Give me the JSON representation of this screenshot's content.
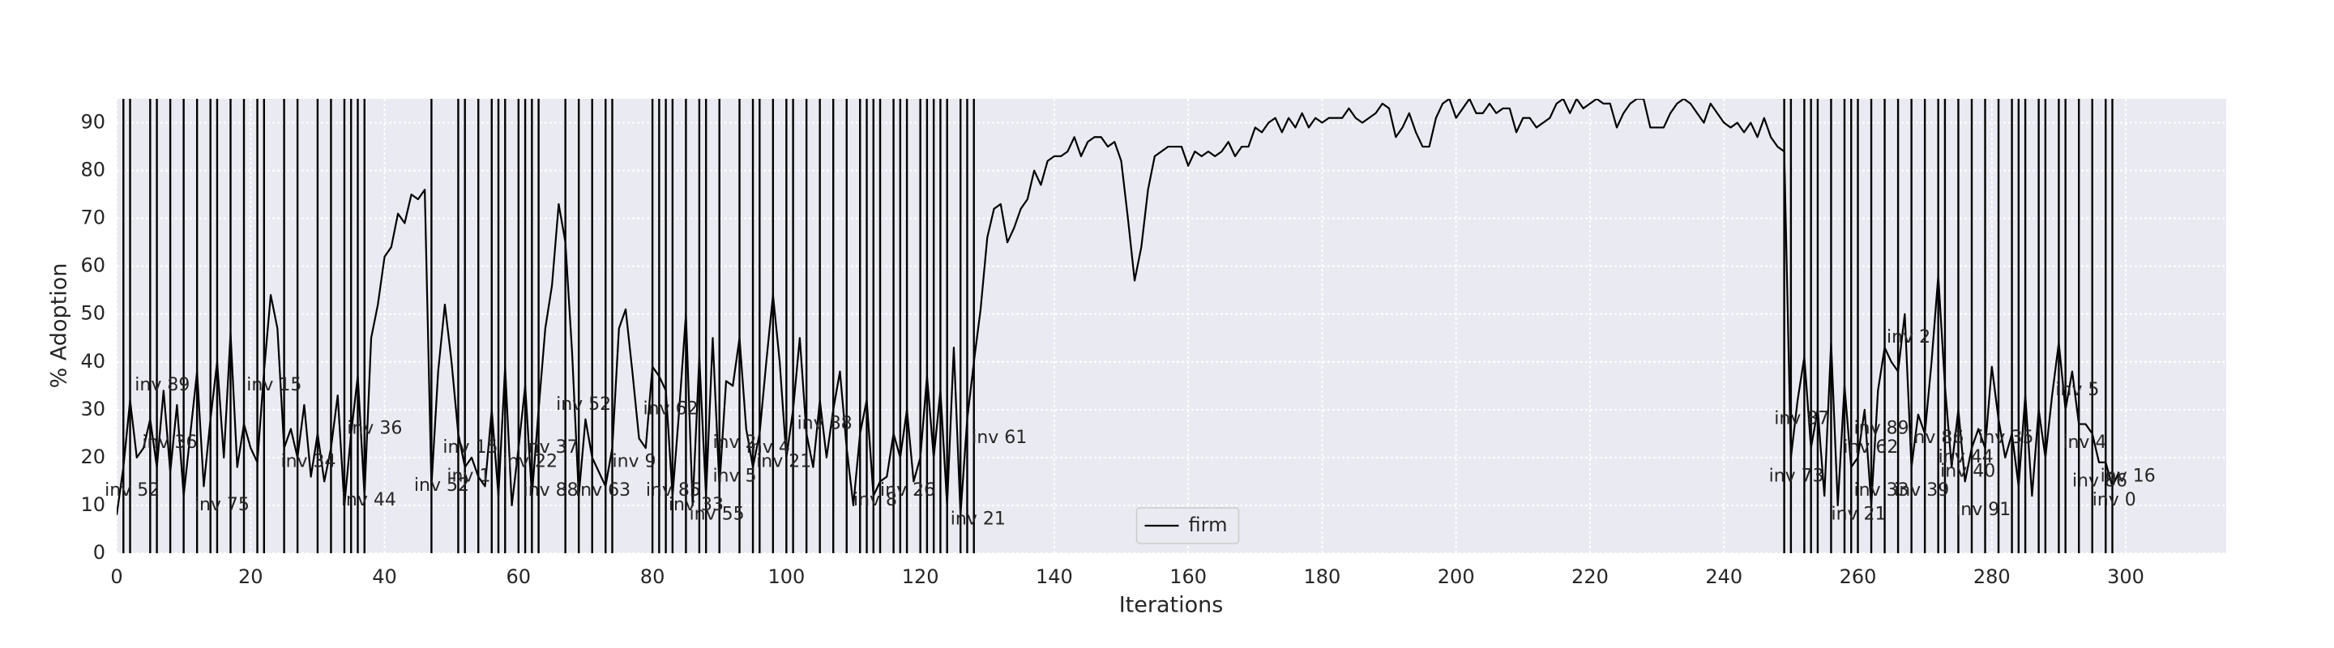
{
  "chart_data": {
    "type": "line",
    "xlabel": "Iterations",
    "ylabel": "% Adoption",
    "x": [
      0,
      1,
      2,
      3,
      4,
      5,
      6,
      7,
      8,
      9,
      10,
      11,
      12,
      13,
      14,
      15,
      16,
      17,
      18,
      19,
      20,
      21,
      22,
      23,
      24,
      25,
      26,
      27,
      28,
      29,
      30,
      31,
      32,
      33,
      34,
      35,
      36,
      37,
      38,
      39,
      40,
      41,
      42,
      43,
      44,
      45,
      46,
      47,
      48,
      49,
      50,
      51,
      52,
      53,
      54,
      55,
      56,
      57,
      58,
      59,
      60,
      61,
      62,
      63,
      64,
      65,
      66,
      67,
      68,
      69,
      70,
      71,
      72,
      73,
      74,
      75,
      76,
      77,
      78,
      79,
      80,
      81,
      82,
      83,
      84,
      85,
      86,
      87,
      88,
      89,
      90,
      91,
      92,
      93,
      94,
      95,
      96,
      97,
      98,
      99,
      100,
      101,
      102,
      103,
      104,
      105,
      106,
      107,
      108,
      109,
      110,
      111,
      112,
      113,
      114,
      115,
      116,
      117,
      118,
      119,
      120,
      121,
      122,
      123,
      124,
      125,
      126,
      127,
      128,
      129,
      130,
      131,
      132,
      133,
      134,
      135,
      136,
      137,
      138,
      139,
      140,
      141,
      142,
      143,
      144,
      145,
      146,
      147,
      148,
      149,
      150,
      151,
      152,
      153,
      154,
      155,
      156,
      157,
      158,
      159,
      160,
      161,
      162,
      163,
      164,
      165,
      166,
      167,
      168,
      169,
      170,
      171,
      172,
      173,
      174,
      175,
      176,
      177,
      178,
      179,
      180,
      181,
      182,
      183,
      184,
      185,
      186,
      187,
      188,
      189,
      190,
      191,
      192,
      193,
      194,
      195,
      196,
      197,
      198,
      199,
      200,
      201,
      202,
      203,
      204,
      205,
      206,
      207,
      208,
      209,
      210,
      211,
      212,
      213,
      214,
      215,
      216,
      217,
      218,
      219,
      220,
      221,
      222,
      223,
      224,
      225,
      226,
      227,
      228,
      229,
      230,
      231,
      232,
      233,
      234,
      235,
      236,
      237,
      238,
      239,
      240,
      241,
      242,
      243,
      244,
      245,
      246,
      247,
      248,
      249,
      250,
      251,
      252,
      253,
      254,
      255,
      256,
      257,
      258,
      259,
      260,
      261,
      262,
      263,
      264,
      265,
      266,
      267,
      268,
      269,
      270,
      271,
      272,
      273,
      274,
      275,
      276,
      277,
      278,
      279,
      280,
      281,
      282,
      283,
      284,
      285,
      286,
      287,
      288,
      289,
      290,
      291,
      292,
      293,
      294,
      295,
      296,
      297,
      298,
      299
    ],
    "series": [
      {
        "name": "firm",
        "color": "#000000",
        "values": [
          8,
          18,
          32,
          20,
          22,
          28,
          18,
          34,
          17,
          31,
          12,
          25,
          38,
          14,
          28,
          40,
          20,
          46,
          18,
          27,
          22,
          19,
          38,
          54,
          47,
          22,
          26,
          20,
          31,
          16,
          25,
          15,
          22,
          33,
          10,
          25,
          37,
          12,
          45,
          52,
          62,
          64,
          71,
          69,
          75,
          74,
          76,
          14,
          38,
          52,
          40,
          25,
          18,
          20,
          16,
          14,
          30,
          12,
          39,
          10,
          22,
          35,
          12,
          30,
          47,
          56,
          73,
          65,
          42,
          12,
          28,
          20,
          17,
          14,
          22,
          47,
          51,
          38,
          24,
          22,
          39,
          37,
          34,
          12,
          30,
          50,
          10,
          41,
          12,
          45,
          14,
          36,
          35,
          45,
          26,
          18,
          25,
          40,
          54,
          40,
          20,
          30,
          45,
          25,
          18,
          32,
          20,
          30,
          38,
          22,
          10,
          25,
          32,
          12,
          15,
          16,
          25,
          20,
          30,
          15,
          20,
          37,
          20,
          34,
          10,
          43,
          8,
          28,
          40,
          51,
          66,
          72,
          73,
          65,
          68,
          72,
          74,
          80,
          77,
          82,
          83,
          83,
          84,
          87,
          83,
          86,
          87,
          87,
          85,
          86,
          82,
          70,
          57,
          64,
          76,
          83,
          84,
          85,
          85,
          85,
          81,
          84,
          83,
          84,
          83,
          84,
          86,
          83,
          85,
          85,
          89,
          88,
          90,
          91,
          88,
          91,
          89,
          92,
          89,
          91,
          90,
          91,
          91,
          91,
          93,
          91,
          90,
          91,
          92,
          94,
          93,
          87,
          89,
          92,
          88,
          85,
          85,
          91,
          94,
          95,
          91,
          93,
          95,
          92,
          92,
          94,
          92,
          93,
          93,
          88,
          91,
          91,
          89,
          90,
          91,
          94,
          95,
          92,
          95,
          93,
          94,
          95,
          94,
          94,
          89,
          92,
          94,
          95,
          95,
          89,
          89,
          89,
          92,
          94,
          95,
          94,
          92,
          90,
          94,
          92,
          90,
          89,
          90,
          88,
          90,
          87,
          91,
          87,
          85,
          84,
          20,
          32,
          41,
          22,
          30,
          12,
          44,
          10,
          35,
          18,
          20,
          30,
          10,
          34,
          43,
          40,
          38,
          50,
          18,
          29,
          25,
          40,
          58,
          35,
          18,
          30,
          15,
          22,
          26,
          22,
          39,
          28,
          20,
          25,
          14,
          33,
          12,
          30,
          20,
          33,
          44,
          30,
          38,
          27,
          27,
          25,
          19,
          19,
          14,
          17
        ]
      }
    ],
    "xlim": [
      0,
      315
    ],
    "ylim": [
      0,
      95
    ],
    "xticks": [
      0,
      20,
      40,
      60,
      80,
      100,
      120,
      140,
      160,
      180,
      200,
      220,
      240,
      260,
      280,
      300
    ],
    "yticks": [
      0,
      10,
      20,
      30,
      40,
      50,
      60,
      70,
      80,
      90
    ],
    "grid": true,
    "legend": "lower center",
    "vlines": {
      "color": "#000000",
      "x": [
        1,
        2,
        5,
        6,
        8,
        10,
        12,
        14,
        15,
        17,
        19,
        21,
        22,
        25,
        27,
        30,
        32,
        34,
        35,
        36,
        37,
        47,
        51,
        52,
        54,
        56,
        57,
        58,
        60,
        61,
        62,
        63,
        67,
        69,
        71,
        73,
        74,
        80,
        81,
        82,
        83,
        85,
        87,
        88,
        90,
        93,
        95,
        96,
        98,
        100,
        101,
        103,
        105,
        107,
        109,
        111,
        112,
        113,
        114,
        116,
        117,
        118,
        120,
        121,
        122,
        123,
        124,
        126,
        127,
        128,
        249,
        250,
        252,
        253,
        254,
        256,
        258,
        259,
        260,
        262,
        264,
        266,
        268,
        270,
        272,
        273,
        275,
        277,
        279,
        281,
        283,
        284,
        285,
        287,
        288,
        290,
        291,
        293,
        295,
        297,
        298
      ]
    },
    "annotations": [
      {
        "text": "inv 89",
        "x": 2.7,
        "y": 34
      },
      {
        "text": "inv 52",
        "x": -1.8,
        "y": 12
      },
      {
        "text": "inv 36",
        "x": 3.8,
        "y": 22
      },
      {
        "text": "inv 75",
        "x": 11.6,
        "y": 9
      },
      {
        "text": "inv 15",
        "x": 19.4,
        "y": 34
      },
      {
        "text": "inv 34",
        "x": 24.5,
        "y": 18
      },
      {
        "text": "inv 36",
        "x": 34.4,
        "y": 25
      },
      {
        "text": "inv 44",
        "x": 33.5,
        "y": 10
      },
      {
        "text": "inv 52",
        "x": 44.4,
        "y": 13
      },
      {
        "text": "inv 15",
        "x": 48.7,
        "y": 21
      },
      {
        "text": "inv 1",
        "x": 49.3,
        "y": 15
      },
      {
        "text": "inv 37",
        "x": 60.7,
        "y": 21
      },
      {
        "text": "inv 52",
        "x": 65.6,
        "y": 30
      },
      {
        "text": "inv 22",
        "x": 57.6,
        "y": 18
      },
      {
        "text": "inv 88",
        "x": 60.7,
        "y": 12
      },
      {
        "text": "inv 63",
        "x": 68.5,
        "y": 12
      },
      {
        "text": "inv 9",
        "x": 74,
        "y": 18
      },
      {
        "text": "inv 62",
        "x": 78.6,
        "y": 29
      },
      {
        "text": "inv 85",
        "x": 79,
        "y": 12
      },
      {
        "text": "inv 33",
        "x": 82.4,
        "y": 9
      },
      {
        "text": "inv 55",
        "x": 85.5,
        "y": 7
      },
      {
        "text": "inv 2",
        "x": 89,
        "y": 22
      },
      {
        "text": "inv 5",
        "x": 89,
        "y": 15
      },
      {
        "text": "inv 4",
        "x": 94,
        "y": 21
      },
      {
        "text": "inv 21",
        "x": 95.5,
        "y": 18
      },
      {
        "text": "inv 88",
        "x": 101.6,
        "y": 26
      },
      {
        "text": "inv 8",
        "x": 110,
        "y": 10
      },
      {
        "text": "inv 26",
        "x": 114,
        "y": 12
      },
      {
        "text": "inv 61",
        "x": 127.7,
        "y": 23
      },
      {
        "text": "inv 21",
        "x": 124.5,
        "y": 6
      },
      {
        "text": "inv 87",
        "x": 247.5,
        "y": 27
      },
      {
        "text": "inv 73",
        "x": 246.7,
        "y": 15
      },
      {
        "text": "inv 21",
        "x": 256,
        "y": 7
      },
      {
        "text": "inv 62",
        "x": 257.8,
        "y": 21
      },
      {
        "text": "inv 89",
        "x": 259.4,
        "y": 25
      },
      {
        "text": "inv 33",
        "x": 259.4,
        "y": 12
      },
      {
        "text": "inv 2",
        "x": 264.3,
        "y": 44
      },
      {
        "text": "inv 39",
        "x": 265.4,
        "y": 12
      },
      {
        "text": "inv 86",
        "x": 267.6,
        "y": 23
      },
      {
        "text": "inv 44",
        "x": 272,
        "y": 19
      },
      {
        "text": "inv 40",
        "x": 272.3,
        "y": 16
      },
      {
        "text": "inv 91",
        "x": 274.6,
        "y": 8
      },
      {
        "text": "inv 35",
        "x": 278,
        "y": 23
      },
      {
        "text": "inv 5",
        "x": 289.5,
        "y": 33
      },
      {
        "text": "inv 4",
        "x": 290.6,
        "y": 22
      },
      {
        "text": "inv 86",
        "x": 292,
        "y": 14
      },
      {
        "text": "inv 16",
        "x": 296.2,
        "y": 15
      },
      {
        "text": "inv 0",
        "x": 295,
        "y": 10
      }
    ]
  }
}
